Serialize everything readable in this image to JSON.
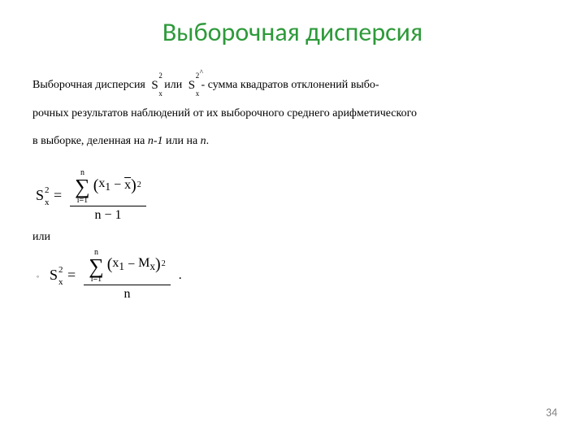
{
  "title": {
    "text": "Выборочная дисперсия",
    "color": "#2e9a3a",
    "font_size": 32
  },
  "body": {
    "font_size": 14,
    "line_height": 2.4,
    "text_color": "#000000",
    "lead_label": "Выборочная дисперсия",
    "sym1": {
      "base": "S",
      "sup": "2",
      "sub": "x"
    },
    "or_word": "или",
    "sym2": {
      "base": "S",
      "sup": "2",
      "sub": "x",
      "hat": "^"
    },
    "rest1": " - сумма квадратов отклонений выбо-",
    "line2": "рочных результатов наблюдений от их выборочного среднего арифметического",
    "line3_a": "в выборке, деленная на ",
    "line3_nminus1": "n-1",
    "line3_b": " или на ",
    "line3_n": "n",
    "line3_c": "."
  },
  "formula1": {
    "lhs": {
      "base": "S",
      "sup": "2",
      "sub": "x"
    },
    "sum_upper": "n",
    "sum_lower": "i=1",
    "term": {
      "left": "x",
      "left_sub": "1",
      "right": "x",
      "right_overline": true
    },
    "denominator": "n − 1"
  },
  "or_between": "или",
  "formula2": {
    "bullet": "∘",
    "lhs": {
      "base": "S",
      "sup": "2",
      "sub": "x"
    },
    "sum_upper": "n",
    "sum_lower": "i=1",
    "term": {
      "left": "x",
      "left_sub": "1",
      "right": "M",
      "right_sub": "x"
    },
    "denominator": "n",
    "trailing": "."
  },
  "page_number": "34",
  "colors": {
    "title": "#2e9a3a",
    "body": "#000000",
    "page_num": "#808080",
    "bg": "#ffffff"
  }
}
